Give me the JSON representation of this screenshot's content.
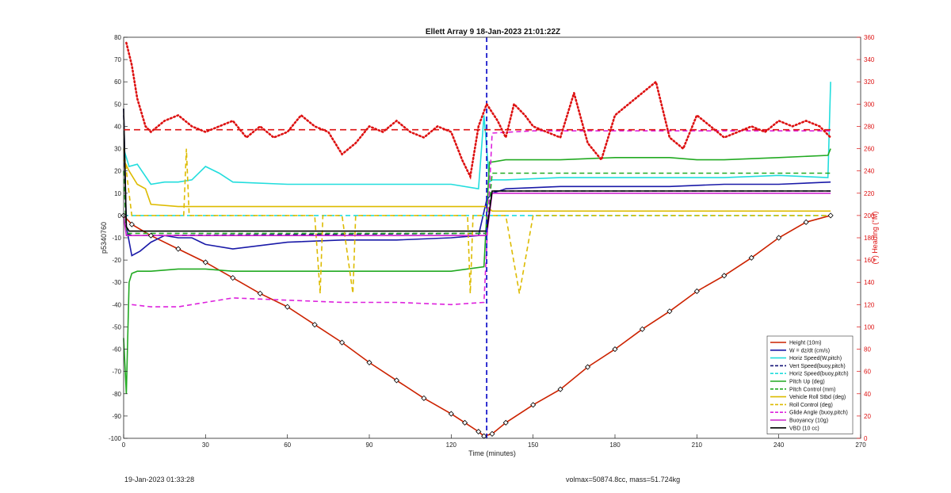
{
  "chart_data": {
    "type": "line",
    "title": "Ellett Array 9 18-Jan-2023 21:01:22Z",
    "xlabel": "Time (minutes)",
    "ylabel": "p5340760",
    "ylabel_right": "(+) Heading (°M)",
    "xlim": [
      0,
      270
    ],
    "ylim": [
      -100,
      80
    ],
    "ylim_right": [
      0,
      360
    ],
    "x_ticks": [
      0,
      30,
      60,
      90,
      120,
      150,
      180,
      210,
      240,
      270
    ],
    "y_ticks": [
      -100,
      -90,
      -80,
      -70,
      -60,
      -50,
      -40,
      -30,
      -20,
      -10,
      0,
      10,
      20,
      30,
      40,
      50,
      60,
      70,
      80
    ],
    "y_ticks_right": [
      0,
      20,
      40,
      60,
      80,
      100,
      120,
      140,
      160,
      180,
      200,
      220,
      240,
      260,
      280,
      300,
      320,
      340,
      360
    ],
    "grid": false,
    "legend_position": "bottom-right",
    "apogee_marker_x": 133,
    "series": [
      {
        "name": "Height (10m)",
        "color": "#cc2200",
        "style": "solid",
        "x": [
          0,
          3,
          10,
          20,
          30,
          40,
          50,
          60,
          70,
          80,
          90,
          100,
          110,
          120,
          125,
          130,
          132,
          135,
          140,
          150,
          160,
          170,
          180,
          190,
          200,
          210,
          220,
          230,
          240,
          250,
          259
        ],
        "y": [
          0,
          -4,
          -9,
          -15,
          -21,
          -28,
          -35,
          -41,
          -49,
          -57,
          -66,
          -74,
          -82,
          -89,
          -93,
          -97,
          -99,
          -98,
          -93,
          -85,
          -78,
          -68,
          -60,
          -51,
          -43,
          -34,
          -27,
          -19,
          -10,
          -3,
          0
        ]
      },
      {
        "name": "W = dz/dt (cm/s)",
        "color": "#1a1aa8",
        "style": "solid",
        "x": [
          0,
          1,
          3,
          6,
          10,
          15,
          20,
          25,
          30,
          40,
          60,
          80,
          100,
          120,
          130,
          133,
          135,
          140,
          160,
          180,
          200,
          220,
          240,
          259
        ],
        "y": [
          48,
          -5,
          -18,
          -16,
          -12,
          -9,
          -10,
          -10,
          -13,
          -15,
          -12,
          -11,
          -11,
          -10,
          -9,
          7,
          10,
          12,
          13,
          13,
          13,
          14,
          14,
          15
        ]
      },
      {
        "name": "Horiz Speed(W,pitch)",
        "color": "#22dddd",
        "style": "solid",
        "x": [
          0,
          2,
          5,
          10,
          15,
          20,
          25,
          30,
          35,
          40,
          60,
          70,
          80,
          100,
          120,
          130,
          132,
          134,
          135,
          140,
          160,
          180,
          200,
          220,
          240,
          258,
          259
        ],
        "y": [
          30,
          22,
          23,
          14,
          15,
          15,
          16,
          22,
          19,
          15,
          14,
          14,
          14,
          14,
          14,
          12,
          45,
          15,
          16,
          16,
          17,
          17,
          17,
          17,
          18,
          17,
          60
        ]
      },
      {
        "name": "Vert Speed(buoy,pitch)",
        "color": "#141478",
        "style": "dashed",
        "x": [
          0,
          1,
          3,
          133,
          135,
          259
        ],
        "y": [
          45,
          -8,
          -9,
          -8,
          11,
          11
        ]
      },
      {
        "name": "Horiz Speed(buoy,pitch)",
        "color": "#22dddd",
        "style": "dashed",
        "x": [
          0,
          259
        ],
        "y": [
          0,
          0
        ]
      },
      {
        "name": "Pitch Up (deg)",
        "color": "#22aa22",
        "style": "solid",
        "x": [
          0,
          1,
          2,
          3,
          5,
          10,
          20,
          30,
          40,
          60,
          80,
          100,
          120,
          132,
          134,
          135,
          140,
          160,
          180,
          200,
          210,
          220,
          240,
          258,
          259
        ],
        "y": [
          -55,
          -80,
          -30,
          -26,
          -25,
          -25,
          -24,
          -24,
          -25,
          -25,
          -25,
          -25,
          -25,
          -23,
          24,
          24,
          25,
          25,
          26,
          26,
          25,
          25,
          26,
          27,
          30
        ]
      },
      {
        "name": "Pitch Control (mm)",
        "color": "#22aa22",
        "style": "dashed",
        "x": [
          0,
          1,
          133,
          135,
          259
        ],
        "y": [
          20,
          -8,
          -8,
          19,
          19
        ]
      },
      {
        "name": "Vehicle Roll Stbd (deg)",
        "color": "#ddbb00",
        "style": "solid",
        "x": [
          0,
          2,
          5,
          8,
          10,
          20,
          40,
          60,
          80,
          100,
          120,
          130,
          133,
          135,
          140,
          160,
          180,
          200,
          220,
          240,
          259
        ],
        "y": [
          25,
          20,
          14,
          12,
          5,
          4,
          4,
          4,
          4,
          4,
          4,
          4,
          4,
          2,
          2,
          2,
          2,
          2,
          2,
          2,
          2
        ]
      },
      {
        "name": "Roll Control (deg)",
        "color": "#ddbb00",
        "style": "dashed",
        "x": [
          0,
          3,
          10,
          22,
          23,
          24,
          40,
          70,
          72,
          73,
          80,
          84,
          85,
          100,
          126,
          127,
          128,
          133,
          135,
          140,
          145,
          150,
          160,
          180,
          200,
          220,
          240,
          259
        ],
        "y": [
          30,
          0,
          0,
          0,
          30,
          0,
          0,
          0,
          -35,
          0,
          0,
          -35,
          0,
          0,
          0,
          -35,
          0,
          0,
          0,
          0,
          -35,
          0,
          0,
          0,
          0,
          0,
          0,
          0
        ]
      },
      {
        "name": "Glide Angle (buoy,pitch)",
        "color": "#dd22dd",
        "style": "dashed",
        "x": [
          3,
          10,
          20,
          30,
          40,
          60,
          80,
          100,
          120,
          132,
          135,
          150,
          180,
          210,
          240,
          259
        ],
        "y": [
          -40,
          -41,
          -41,
          -39,
          -37,
          -38,
          -39,
          -39,
          -40,
          -39,
          37,
          38,
          38,
          38,
          38,
          38
        ]
      },
      {
        "name": "Buoyancy (10g)",
        "color": "#cc22cc",
        "style": "solid",
        "x": [
          0,
          1,
          133,
          135,
          259
        ],
        "y": [
          0,
          -9,
          -9,
          10,
          10
        ]
      },
      {
        "name": "VBD (10 cc)",
        "color": "#000000",
        "style": "solid",
        "x": [
          0,
          1,
          2,
          3,
          10,
          133,
          135,
          140,
          259
        ],
        "y": [
          48,
          -5,
          -7,
          -7,
          -7,
          -7,
          11,
          11,
          11
        ]
      }
    ],
    "heading_series": {
      "color": "#dd1111",
      "style": "dotted",
      "axis": "right",
      "mean": 277,
      "x": [
        1,
        3,
        5,
        8,
        10,
        15,
        20,
        25,
        30,
        35,
        40,
        45,
        50,
        55,
        60,
        65,
        70,
        75,
        80,
        85,
        90,
        95,
        100,
        105,
        110,
        115,
        120,
        124,
        127,
        130,
        133,
        137,
        140,
        143,
        147,
        150,
        155,
        160,
        165,
        170,
        175,
        180,
        185,
        190,
        195,
        200,
        205,
        210,
        215,
        220,
        225,
        230,
        235,
        240,
        245,
        250,
        255,
        259
      ],
      "y": [
        355,
        335,
        305,
        280,
        275,
        285,
        290,
        280,
        275,
        280,
        285,
        270,
        280,
        270,
        275,
        290,
        280,
        275,
        255,
        265,
        280,
        275,
        285,
        275,
        270,
        280,
        275,
        250,
        235,
        280,
        300,
        285,
        270,
        300,
        290,
        280,
        275,
        270,
        310,
        265,
        250,
        290,
        300,
        310,
        320,
        270,
        260,
        290,
        280,
        270,
        275,
        280,
        275,
        285,
        280,
        285,
        280,
        270
      ]
    }
  },
  "footer": {
    "left": "19-Jan-2023 01:33:28",
    "right": "volmax=50874.8cc, mass=51.724kg"
  }
}
